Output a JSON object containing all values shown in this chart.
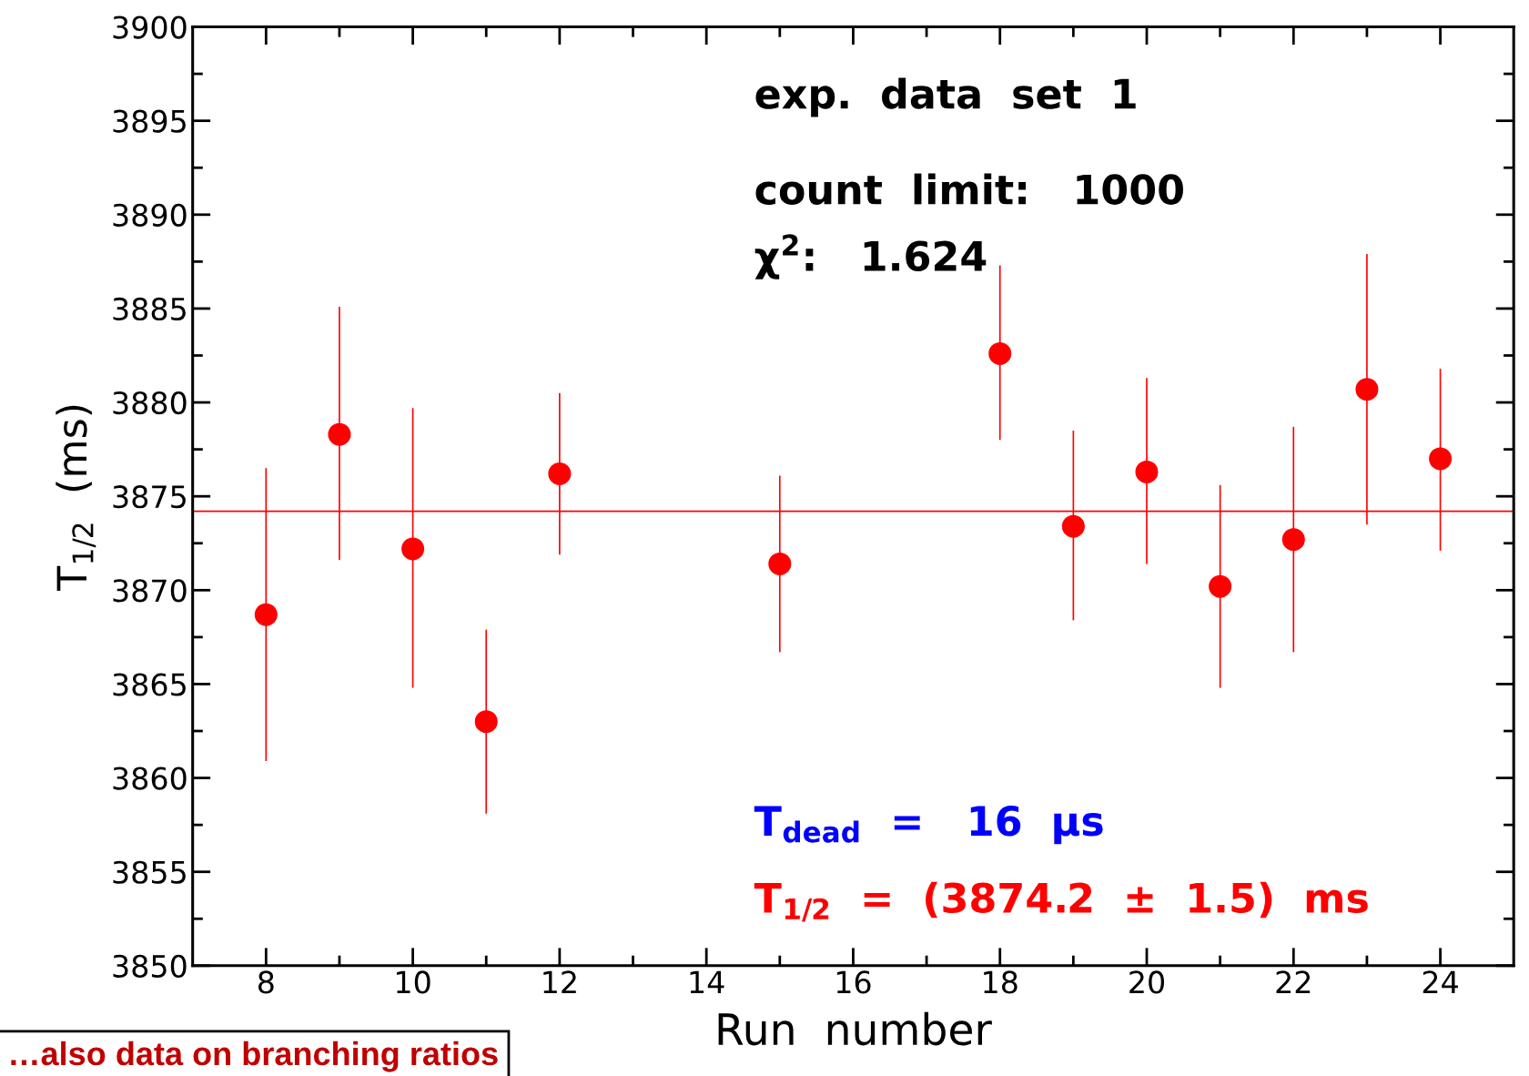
{
  "chart_data": {
    "type": "scatter",
    "xlabel": "Run  number",
    "ylabel": "T$_{1/2}$  (ms)",
    "x": [
      8,
      9,
      10,
      11,
      12,
      15,
      18,
      19,
      20,
      21,
      22,
      23,
      24
    ],
    "series": [
      {
        "color": "#ff0000",
        "values": [
          3868.7,
          3878.3,
          3872.2,
          3863.0,
          3876.2,
          3871.4,
          3882.6,
          3873.4,
          3876.3,
          3870.2,
          3872.7,
          3880.7,
          3877.0
        ],
        "errors": [
          [
            3860.9,
            3876.5
          ],
          [
            3871.6,
            3885.1
          ],
          [
            3864.8,
            3879.7
          ],
          [
            3858.1,
            3867.9
          ],
          [
            3871.9,
            3880.5
          ],
          [
            3866.7,
            3876.1
          ],
          [
            3878.0,
            3887.3
          ],
          [
            3868.4,
            3878.5
          ],
          [
            3871.4,
            3881.3
          ],
          [
            3864.8,
            3875.6
          ],
          [
            3866.7,
            3878.7
          ],
          [
            3873.5,
            3887.9
          ],
          [
            3872.1,
            3881.8
          ]
        ]
      }
    ],
    "marker": "circle",
    "xlim": [
      7,
      25
    ],
    "xticks": [
      8,
      10,
      12,
      14,
      16,
      18,
      20,
      22,
      24
    ],
    "ylim": [
      3850,
      3900
    ],
    "yticks": [
      3850,
      3855,
      3860,
      3865,
      3870,
      3875,
      3880,
      3885,
      3890,
      3895,
      3900
    ],
    "ref_lines": [
      {
        "axis": "y",
        "value": 3874.2,
        "color": "#ff0000"
      }
    ],
    "grid": false,
    "annotations": [
      "exp.  data  set  1",
      "count  limit:   1000",
      "χ$^{2}$:   1.624",
      "T$_{dead}$  =   16  μs",
      "T$_{1/2}$  =  (3874.2  ±  1.5)  ms",
      "…also data on branching ratios"
    ]
  }
}
